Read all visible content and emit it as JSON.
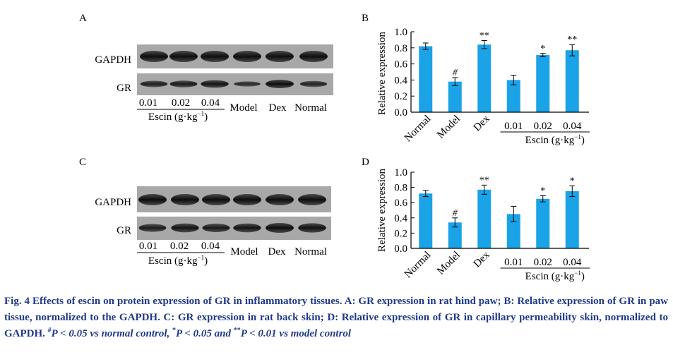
{
  "colors": {
    "bar": "#1aa3e6",
    "axis": "#000000",
    "caption": "#1f3a8a"
  },
  "blots": [
    {
      "panel_label": "A",
      "row_labels": [
        "GAPDH",
        "GR"
      ],
      "escin_doses": [
        "0.01",
        "0.02",
        "0.04"
      ],
      "escin_group": "Escin (g·kg",
      "escin_sup": "−1",
      "other_lanes": [
        "Model",
        "Dex",
        "Normal"
      ]
    },
    {
      "panel_label": "C",
      "row_labels": [
        "GAPDH",
        "GR"
      ],
      "escin_doses": [
        "0.01",
        "0.02",
        "0.04"
      ],
      "escin_group": "Escin (g·kg",
      "escin_sup": "−1",
      "other_lanes": [
        "Model",
        "Dex",
        "Normal"
      ]
    }
  ],
  "chart_data": [
    {
      "type": "bar",
      "panel_label": "B",
      "categories": [
        "Normal",
        "Model",
        "Dex",
        "0.01",
        "0.02",
        "0.04"
      ],
      "values": [
        0.82,
        0.38,
        0.84,
        0.4,
        0.71,
        0.77
      ],
      "errors": [
        0.04,
        0.05,
        0.05,
        0.06,
        0.02,
        0.07
      ],
      "annotations": [
        "",
        "#",
        "**",
        "",
        "*",
        "**"
      ],
      "ylabel": "Relative expression",
      "ylim": [
        0,
        1.0
      ],
      "yticks": [
        "0.0",
        "0.2",
        "0.4",
        "0.6",
        "0.8",
        "1.0"
      ],
      "group_label": "Escin (g·kg",
      "group_label_sup": "−1",
      "grid": false
    },
    {
      "type": "bar",
      "panel_label": "D",
      "categories": [
        "Normal",
        "Model",
        "Dex",
        "0.01",
        "0.02",
        "0.04"
      ],
      "values": [
        0.72,
        0.34,
        0.77,
        0.45,
        0.65,
        0.75
      ],
      "errors": [
        0.04,
        0.06,
        0.06,
        0.1,
        0.04,
        0.07
      ],
      "annotations": [
        "",
        "#",
        "**",
        "",
        "*",
        "*"
      ],
      "ylabel": "Relative expression",
      "ylim": [
        0,
        1.0
      ],
      "yticks": [
        "0.0",
        "0.2",
        "0.4",
        "0.6",
        "0.8",
        "1.0"
      ],
      "group_label": "Escin (g·kg",
      "group_label_sup": "−1",
      "grid": false
    }
  ],
  "caption": {
    "title": "Fig. 4    Effects of escin on protein expression of GR in inflammatory tissues. A: GR expression in rat hind paw; B: Relative expression of GR in paw tissue, normalized to the GAPDH. C: GR expression in rat back skin; D: Relative expression of GR in capillary permeability skin, normalized to GAPDH.",
    "sig1_sym": "#",
    "sig1_text": "P < 0.05 vs normal control, ",
    "sig2_sym": "*",
    "sig2_text": "P < 0.05 and ",
    "sig3_sym": "**",
    "sig3_text": "P < 0.01 vs model control"
  }
}
